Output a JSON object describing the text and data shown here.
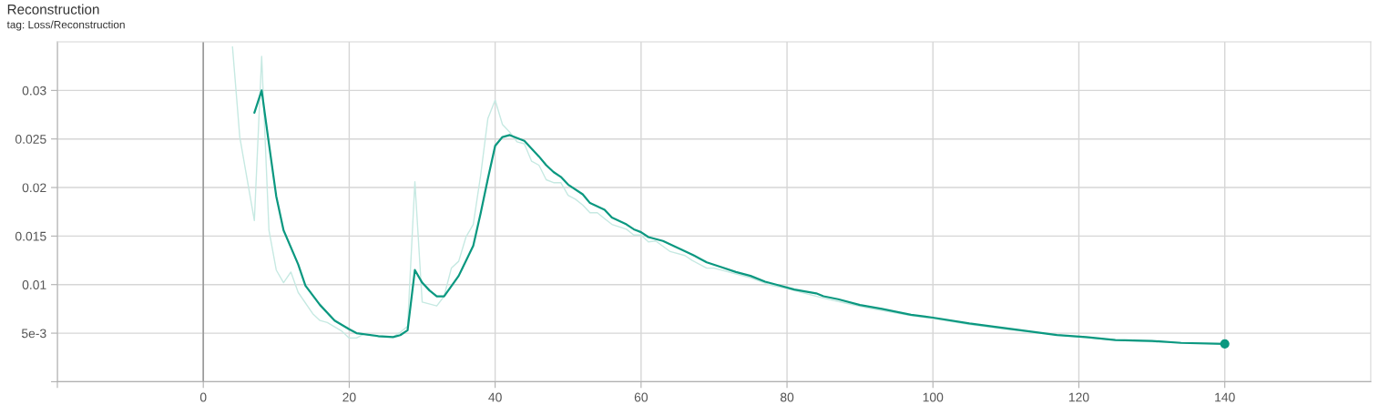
{
  "chart_data": {
    "type": "line",
    "title": "Reconstruction",
    "subtitle": "tag: Loss/Reconstruction",
    "xlim": [
      -20,
      160
    ],
    "xticks": [
      {
        "value": -20,
        "label": null
      },
      0,
      20,
      40,
      60,
      80,
      100,
      120,
      140
    ],
    "ylim": [
      0,
      0.035
    ],
    "yticks": [
      {
        "value": 0,
        "label": null
      },
      {
        "value": 0.005,
        "label": "5e-3"
      },
      0.01,
      0.015,
      0.02,
      0.025,
      0.03
    ],
    "grid": true,
    "ref_lines": [
      {
        "axis": "x",
        "value": 0,
        "color": "#9a9a9a"
      }
    ],
    "series": [
      {
        "color": "#c6e9e2",
        "x": [
          4,
          5,
          7,
          8,
          9,
          10,
          11,
          12,
          13,
          15,
          16,
          17,
          19,
          20,
          21,
          22,
          24,
          26,
          27,
          28,
          29,
          30,
          32,
          33,
          34,
          35,
          36,
          37,
          38,
          39,
          40,
          41,
          42,
          43,
          44,
          45,
          46,
          47,
          48,
          49,
          50,
          51,
          52,
          53,
          54,
          55,
          56,
          58,
          59,
          60,
          61,
          62,
          64,
          66,
          67,
          69,
          70,
          72,
          75,
          78,
          80,
          82,
          85,
          88,
          91,
          94,
          97,
          100,
          105,
          110,
          115,
          120,
          125,
          130,
          135,
          140
        ],
        "values": [
          0.0345,
          0.0252,
          0.0166,
          0.0335,
          0.0156,
          0.0115,
          0.0102,
          0.0113,
          0.0092,
          0.007,
          0.0063,
          0.0061,
          0.0052,
          0.0045,
          0.0045,
          0.0049,
          0.0046,
          0.0046,
          0.0051,
          0.0057,
          0.0206,
          0.0082,
          0.0078,
          0.0088,
          0.0117,
          0.0124,
          0.0149,
          0.0162,
          0.0212,
          0.0271,
          0.029,
          0.0265,
          0.0257,
          0.0247,
          0.0245,
          0.0227,
          0.0223,
          0.0208,
          0.0205,
          0.0205,
          0.0192,
          0.0188,
          0.0182,
          0.0174,
          0.0174,
          0.0168,
          0.0162,
          0.0157,
          0.0151,
          0.0151,
          0.0144,
          0.0145,
          0.0134,
          0.013,
          0.0125,
          0.0117,
          0.0117,
          0.0113,
          0.0107,
          0.0099,
          0.0096,
          0.0092,
          0.0086,
          0.0081,
          0.0076,
          0.0072,
          0.0068,
          0.0065,
          0.0059,
          0.0054,
          0.005,
          0.0046,
          0.0043,
          0.0041,
          0.004,
          0.0039
        ]
      },
      {
        "color": "#0b9880",
        "x": [
          7,
          8,
          9,
          10,
          11,
          13,
          14,
          16,
          18,
          20,
          21,
          24,
          26,
          27,
          28,
          29,
          30,
          31,
          32,
          33,
          35,
          37,
          38,
          39,
          40,
          41,
          42,
          44,
          46,
          47,
          48,
          49,
          50,
          52,
          53,
          55,
          56,
          58,
          59,
          60,
          61,
          63,
          65,
          67,
          68,
          69,
          71,
          73,
          75,
          77,
          79,
          81,
          84,
          85,
          87,
          90,
          93,
          95,
          97,
          100,
          105,
          109,
          113,
          117,
          121,
          125,
          130,
          134,
          140
        ],
        "values": [
          0.0277,
          0.03,
          0.0245,
          0.0191,
          0.0156,
          0.0121,
          0.0099,
          0.0079,
          0.0063,
          0.0054,
          0.005,
          0.0047,
          0.0046,
          0.0048,
          0.0053,
          0.0115,
          0.0102,
          0.0094,
          0.0088,
          0.0088,
          0.0109,
          0.014,
          0.0173,
          0.0209,
          0.0243,
          0.0252,
          0.0254,
          0.0248,
          0.0232,
          0.0223,
          0.0216,
          0.0211,
          0.0203,
          0.0193,
          0.0184,
          0.0177,
          0.0169,
          0.0162,
          0.0157,
          0.0154,
          0.0149,
          0.0145,
          0.0138,
          0.0131,
          0.0127,
          0.0123,
          0.0118,
          0.0113,
          0.0109,
          0.0103,
          0.0099,
          0.0095,
          0.0091,
          0.0088,
          0.0085,
          0.0079,
          0.0075,
          0.0072,
          0.0069,
          0.0066,
          0.006,
          0.0056,
          0.0052,
          0.0048,
          0.0046,
          0.0043,
          0.0042,
          0.004,
          0.0039
        ]
      },
      {
        "type": "scatter",
        "marker": "circle",
        "color": "#0b9880",
        "x": [
          140
        ],
        "values": [
          0.0039
        ]
      }
    ]
  }
}
